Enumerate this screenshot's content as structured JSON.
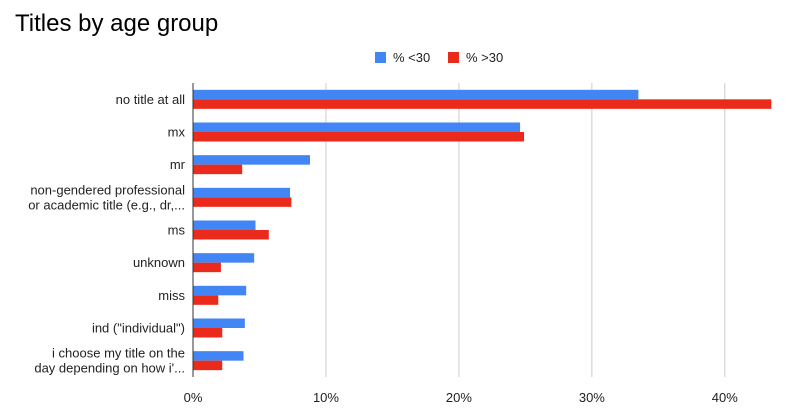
{
  "chart_data": {
    "type": "bar",
    "orientation": "horizontal",
    "title": "Titles by age group",
    "xlabel": "",
    "ylabel": "",
    "xlim": [
      0,
      44
    ],
    "x_ticks": [
      0,
      10,
      20,
      30,
      40
    ],
    "x_tick_labels": [
      "0%",
      "10%",
      "20%",
      "30%",
      "40%"
    ],
    "grid": true,
    "legend_position": "top-center",
    "categories": [
      [
        "no title at all"
      ],
      [
        "mx"
      ],
      [
        "mr"
      ],
      [
        "non-gendered professional",
        "or academic title (e.g., dr,..."
      ],
      [
        "ms"
      ],
      [
        "unknown"
      ],
      [
        "miss"
      ],
      [
        "ind (\"individual\")"
      ],
      [
        "i choose my title on the",
        "day depending on how i'..."
      ]
    ],
    "series": [
      {
        "name": "% <30",
        "color": "#4285f4",
        "values": [
          33.5,
          24.6,
          8.8,
          7.3,
          4.7,
          4.6,
          4.0,
          3.9,
          3.8
        ]
      },
      {
        "name": "% >30",
        "color": "#ea2a1a",
        "values": [
          43.5,
          24.9,
          3.7,
          7.4,
          5.7,
          2.1,
          1.9,
          2.2,
          2.2
        ]
      }
    ]
  }
}
